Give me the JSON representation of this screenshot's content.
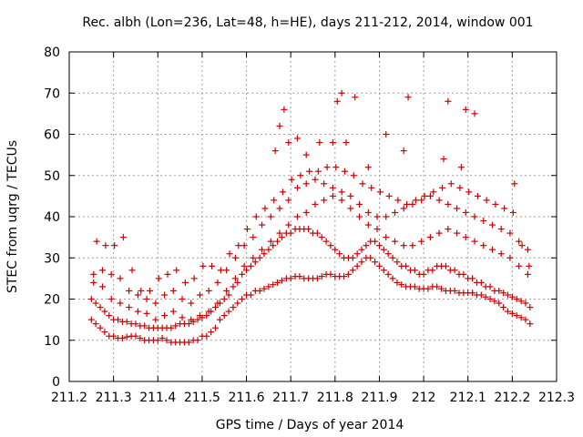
{
  "chart_data": {
    "type": "scatter",
    "title": "Rec. albh (Lon=236, Lat=48, h=HE), days 211-212, 2014, window 001",
    "xlabel": "GPS time / Days of year 2014",
    "ylabel": "STEC from uqrg / TECUs",
    "xlim": [
      211.2,
      212.3
    ],
    "ylim": [
      0,
      80
    ],
    "xticks": [
      "211.2",
      "211.3",
      "211.4",
      "211.5",
      "211.6",
      "211.7",
      "211.8",
      "211.9",
      "212",
      "212.1",
      "212.2",
      "212.3"
    ],
    "yticks": [
      "0",
      "10",
      "20",
      "30",
      "40",
      "50",
      "60",
      "70",
      "80"
    ],
    "grid": true,
    "marker": "plus",
    "series_color": "#cc0000",
    "series": [
      {
        "x": [
          211.25,
          211.26,
          211.27,
          211.28,
          211.29,
          211.3,
          211.31,
          211.32,
          211.33,
          211.34,
          211.35,
          211.36,
          211.37,
          211.38,
          211.39,
          211.4,
          211.41,
          211.42,
          211.43,
          211.44,
          211.45,
          211.46,
          211.47,
          211.48,
          211.49,
          211.5,
          211.51,
          211.52,
          211.53,
          211.54,
          211.55,
          211.56,
          211.57,
          211.58,
          211.59,
          211.6,
          211.61,
          211.62,
          211.63,
          211.64,
          211.65,
          211.66,
          211.67,
          211.68,
          211.69,
          211.7,
          211.71,
          211.72,
          211.73,
          211.74,
          211.75,
          211.76,
          211.77,
          211.78,
          211.79,
          211.8,
          211.81,
          211.82,
          211.83,
          211.84,
          211.85,
          211.86,
          211.87,
          211.88,
          211.89,
          211.9,
          211.91,
          211.92,
          211.93,
          211.94,
          211.95,
          211.96,
          211.97,
          211.98,
          211.99,
          212.0,
          212.01,
          212.02,
          212.03,
          212.04,
          212.05,
          212.06,
          212.07,
          212.08,
          212.09,
          212.1,
          212.11,
          212.12,
          212.13,
          212.14,
          212.15,
          212.16,
          212.17,
          212.18,
          212.19,
          212.2,
          212.21,
          212.22,
          212.23,
          212.24,
          211.25,
          211.26,
          211.27,
          211.28,
          211.29,
          211.3,
          211.31,
          211.32,
          211.33,
          211.34,
          211.35,
          211.36,
          211.37,
          211.38,
          211.39,
          211.4,
          211.41,
          211.42,
          211.43,
          211.44,
          211.45,
          211.46,
          211.47,
          211.48,
          211.49,
          211.5,
          211.51,
          211.52,
          211.53,
          211.54,
          211.55,
          211.56,
          211.57,
          211.58,
          211.59,
          211.6,
          211.61,
          211.62,
          211.63,
          211.64,
          211.65,
          211.66,
          211.67,
          211.68,
          211.69,
          211.7,
          211.71,
          211.72,
          211.73,
          211.74,
          211.75,
          211.76,
          211.77,
          211.78,
          211.79,
          211.8,
          211.81,
          211.82,
          211.83,
          211.84,
          211.85,
          211.86,
          211.87,
          211.88,
          211.89,
          211.9,
          211.91,
          211.92,
          211.93,
          211.94,
          211.95,
          211.96,
          211.97,
          211.98,
          211.99,
          212.0,
          212.01,
          212.02,
          212.03,
          212.04,
          212.05,
          212.06,
          212.07,
          212.08,
          212.09,
          212.1,
          212.11,
          212.12,
          212.13,
          212.14,
          212.15,
          212.16,
          212.17,
          212.18,
          212.19,
          212.2,
          212.21,
          212.22,
          212.23,
          212.24,
          211.255,
          211.275,
          211.295,
          211.315,
          211.335,
          211.355,
          211.375,
          211.395,
          211.415,
          211.435,
          211.455,
          211.475,
          211.495,
          211.515,
          211.535,
          211.555,
          211.575,
          211.595,
          211.615,
          211.635,
          211.655,
          211.675,
          211.695,
          211.715,
          211.735,
          211.755,
          211.775,
          211.795,
          211.815,
          211.835,
          211.855,
          211.875,
          211.895,
          211.915,
          211.935,
          211.955,
          211.975,
          211.995,
          212.015,
          212.035,
          212.055,
          212.075,
          212.095,
          212.115,
          212.135,
          212.155,
          212.175,
          212.195,
          212.215,
          212.235,
          211.255,
          211.275,
          211.295,
          211.315,
          211.335,
          211.355,
          211.375,
          211.395,
          211.415,
          211.435,
          211.455,
          211.475,
          211.495,
          211.515,
          211.535,
          211.555,
          211.575,
          211.595,
          211.615,
          211.635,
          211.655,
          211.675,
          211.695,
          211.715,
          211.735,
          211.755,
          211.775,
          211.795,
          211.815,
          211.835,
          211.855,
          211.875,
          211.895,
          211.915,
          211.935,
          211.955,
          211.975,
          211.995,
          212.015,
          212.035,
          212.055,
          212.075,
          212.095,
          212.115,
          212.135,
          212.155,
          212.175,
          212.195,
          212.215,
          212.235,
          211.262,
          211.282,
          211.302,
          211.322,
          211.342,
          211.362,
          211.382,
          211.402,
          211.422,
          211.442,
          211.462,
          211.482,
          211.502,
          211.522,
          211.542,
          211.562,
          211.582,
          211.602,
          211.622,
          211.642,
          211.662,
          211.682,
          211.702,
          211.722,
          211.742,
          211.762,
          211.782,
          211.802,
          211.822,
          211.842,
          211.862,
          211.882,
          211.902,
          211.922,
          211.942,
          211.962,
          211.982,
          212.002,
          212.022,
          212.042,
          212.062,
          212.082,
          212.102,
          212.122,
          212.142,
          212.162,
          212.182,
          212.202,
          212.222,
          212.238,
          211.665,
          211.675,
          211.685,
          211.695,
          211.715,
          211.735,
          211.765,
          211.795,
          211.805,
          211.815,
          211.825,
          211.845,
          211.875,
          211.915,
          211.955,
          211.965,
          212.045,
          212.055,
          212.085,
          212.095,
          212.115,
          212.205
        ],
        "y": [
          15,
          14,
          13,
          12,
          11,
          11,
          10.5,
          10.5,
          10.8,
          11,
          11,
          10.5,
          10,
          10,
          10,
          10,
          10.5,
          10,
          9.5,
          9.5,
          9.5,
          9.5,
          9.5,
          10,
          10,
          11,
          11,
          12,
          13,
          15,
          16,
          17,
          18,
          19,
          20,
          21,
          21,
          22,
          22,
          22.5,
          23,
          23.5,
          24,
          24.5,
          25,
          25,
          25.5,
          25.5,
          25,
          25,
          25,
          25,
          25.5,
          26,
          26,
          25.5,
          25.5,
          25.5,
          26,
          27,
          28,
          29,
          30,
          30,
          29,
          28,
          27,
          26,
          25,
          24,
          23.5,
          23,
          23,
          23,
          22.5,
          22.5,
          22.5,
          23,
          23,
          22.5,
          22,
          22,
          22,
          21.5,
          21.5,
          21.5,
          21.5,
          21,
          21,
          20.5,
          20,
          19.5,
          19,
          18,
          17,
          16.5,
          16,
          15.5,
          15,
          14,
          20,
          19,
          18,
          17,
          16,
          15,
          15,
          14.5,
          14.5,
          14,
          14,
          13.5,
          13.5,
          13,
          13,
          13,
          13,
          13,
          13,
          13.5,
          14,
          14,
          14,
          14.5,
          15,
          15.5,
          16,
          17,
          18,
          19,
          20,
          21,
          23,
          24,
          26,
          27,
          28,
          29,
          30,
          31,
          32,
          33,
          34,
          35,
          36,
          36,
          37,
          37,
          37,
          37,
          36,
          36,
          35,
          34,
          33,
          32,
          31,
          30,
          30,
          30,
          31,
          32,
          33,
          34,
          34,
          33,
          32,
          31,
          30,
          29,
          28,
          28,
          27,
          27,
          26,
          26,
          27,
          27,
          28,
          28,
          28,
          27,
          27,
          26,
          26,
          25,
          25,
          24,
          24,
          23,
          23,
          22,
          22,
          21.5,
          21,
          20.5,
          20,
          19.5,
          19,
          18,
          24,
          23,
          20,
          19,
          18,
          17,
          16.5,
          15,
          16,
          17,
          15.5,
          15,
          16,
          17,
          19,
          22,
          25,
          28,
          30,
          32,
          34,
          36,
          38,
          40,
          41,
          43,
          44,
          45,
          44,
          42,
          40,
          38,
          37,
          35,
          34,
          33,
          33,
          34,
          35,
          36,
          37,
          36,
          35,
          34,
          33,
          32,
          31,
          30,
          28,
          26,
          26,
          27,
          26,
          25,
          22,
          21,
          20,
          19,
          21,
          22,
          20,
          19,
          21,
          22,
          24,
          27,
          30,
          33,
          35,
          38,
          40,
          42,
          44,
          47,
          48,
          49,
          48,
          47,
          46,
          45,
          43,
          41,
          40,
          40,
          41,
          42,
          43,
          44,
          45,
          44,
          43,
          42,
          41,
          40,
          39,
          38,
          37,
          36,
          34,
          32,
          34,
          33,
          33,
          35,
          27,
          22,
          22,
          25,
          26,
          27,
          24,
          25,
          28,
          28,
          27,
          31,
          33,
          37,
          40,
          42,
          44,
          46,
          49,
          50,
          51,
          51,
          52,
          52,
          51,
          50,
          48,
          47,
          46,
          45,
          44,
          43,
          44,
          45,
          46,
          47,
          48,
          47,
          46,
          45,
          44,
          43,
          42,
          41,
          33,
          28,
          56,
          62,
          66,
          58,
          59,
          55,
          58,
          58,
          68,
          70,
          58,
          69,
          52,
          60,
          56,
          69,
          54,
          68,
          52,
          66,
          65,
          48
        ],
        "note": ""
      }
    ]
  }
}
